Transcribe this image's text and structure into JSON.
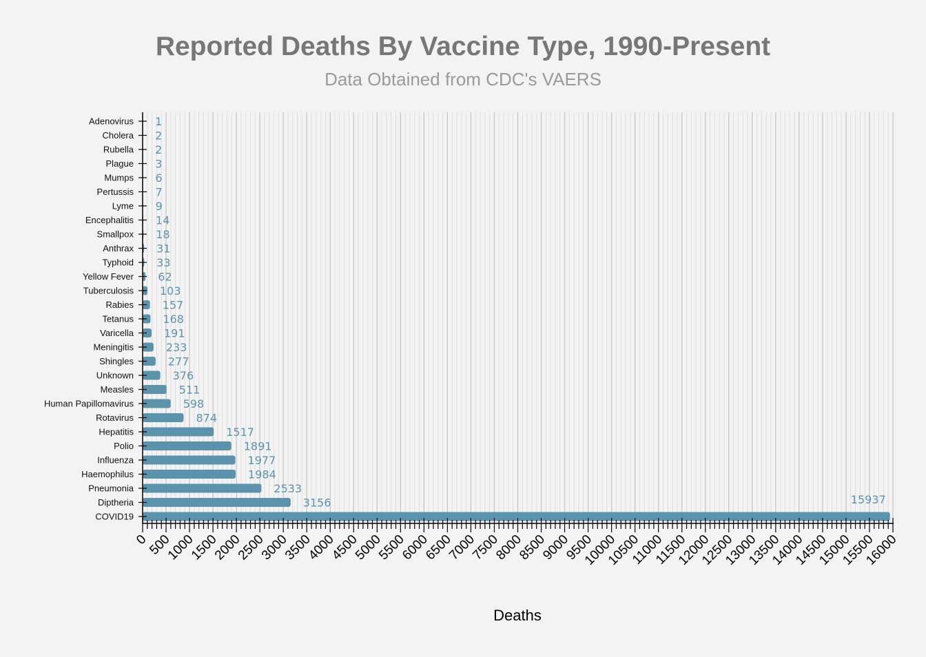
{
  "colors": {
    "background": "#f3f3f3",
    "bar": "#5b93ad",
    "value_label": "#5b93ad",
    "grid_major": "#c2c2c2",
    "grid_minor": "#dedede"
  },
  "chart_data": {
    "type": "bar",
    "orientation": "horizontal",
    "title": "Reported Deaths By Vaccine Type, 1990-Present",
    "subtitle": "Data Obtained from CDC's VAERS",
    "xlabel": "Deaths",
    "ylabel": "",
    "xlim": [
      0,
      16000
    ],
    "x_ticks": [
      0,
      500,
      1000,
      1500,
      2000,
      2500,
      3000,
      3500,
      4000,
      4500,
      5000,
      5500,
      6000,
      6500,
      7000,
      7500,
      8000,
      8500,
      9000,
      9500,
      10000,
      10500,
      11000,
      11500,
      12000,
      12500,
      13000,
      13500,
      14000,
      14500,
      15000,
      15500,
      16000
    ],
    "grid": true,
    "categories": [
      "Adenovirus",
      "Cholera",
      "Rubella",
      "Plague",
      "Mumps",
      "Pertussis",
      "Lyme",
      "Encephalitis",
      "Smallpox",
      "Anthrax",
      "Typhoid",
      "Yellow Fever",
      "Tuberculosis",
      "Rabies",
      "Tetanus",
      "Varicella",
      "Meningitis",
      "Shingles",
      "Unknown",
      "Measles",
      "Human Papillomavirus",
      "Rotavirus",
      "Hepatitis",
      "Polio",
      "Influenza",
      "Haemophilus",
      "Pneumonia",
      "Diptheria",
      "COVID19"
    ],
    "values": [
      1,
      2,
      2,
      3,
      6,
      7,
      9,
      14,
      18,
      31,
      33,
      62,
      103,
      157,
      168,
      191,
      233,
      277,
      376,
      511,
      598,
      874,
      1517,
      1891,
      1977,
      1984,
      2533,
      3156,
      15937
    ]
  }
}
